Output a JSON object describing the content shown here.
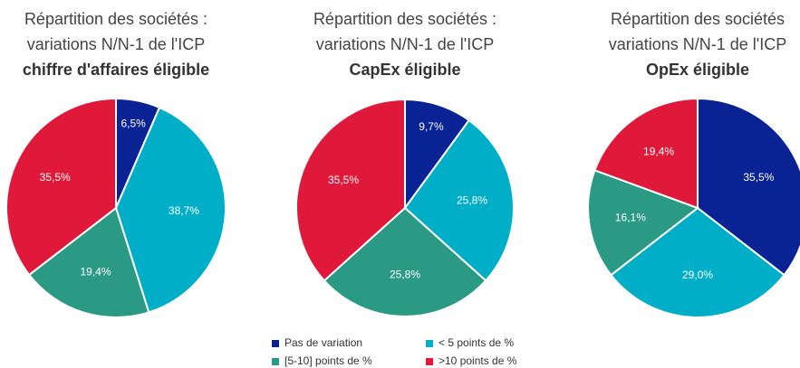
{
  "chart_data": [
    {
      "type": "pie",
      "title": [
        "Répartition des sociétés :",
        "variations N/N-1 de l'ICP",
        "chiffre d'affaires éligible"
      ],
      "values": [
        6.5,
        38.7,
        19.4,
        35.5
      ],
      "value_labels": [
        "6,5%",
        "38,7%",
        "19,4%",
        "35,5%"
      ]
    },
    {
      "type": "pie",
      "title": [
        "Répartition des sociétés :",
        "variations N/N-1 de l'ICP",
        "CapEx éligible"
      ],
      "values": [
        9.7,
        25.8,
        25.8,
        35.5
      ],
      "value_labels": [
        "9,7%",
        "25,8%",
        "25,8%",
        "35,5%"
      ]
    },
    {
      "type": "pie",
      "title": [
        "Répartition des sociétés",
        "variations N/N-1 de l'ICP",
        "OpEx éligible"
      ],
      "values": [
        35.5,
        29.0,
        16.1,
        19.4
      ],
      "value_labels": [
        "35,5%",
        "29,0%",
        "16,1%",
        "19,4%"
      ]
    }
  ],
  "legend": {
    "labels": [
      "Pas de variation",
      "< 5 points de %",
      "[5-10] points de %",
      ">10 points de %"
    ],
    "colors": [
      "#0a2394",
      "#00aec7",
      "#2a9a85",
      "#e0193a"
    ]
  }
}
